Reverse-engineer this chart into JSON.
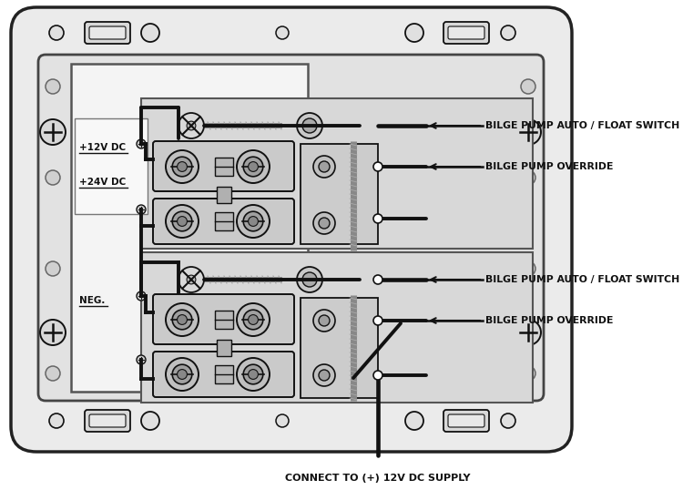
{
  "bg_color": "#ffffff",
  "line_color": "#111111",
  "panel_outer_color": "#e8e8e8",
  "panel_inner_color": "#d0d0d0",
  "panel_white": "#f0f0f0",
  "labels": {
    "label1": "BILGE PUMP AUTO / FLOAT SWITCH",
    "label2": "BILGE PUMP OVERRIDE",
    "label3": "BILGE PUMP AUTO / FLOAT SWITCH",
    "label4": "BILGE PUMP OVERRIDE",
    "label5": "CONNECT TO (+) 12V DC SUPPLY"
  },
  "voltage_labels": {
    "v1": "+12V DC",
    "v2": "+24V DC",
    "v3": "NEG."
  },
  "figsize": [
    7.5,
    5.38
  ],
  "dpi": 100
}
